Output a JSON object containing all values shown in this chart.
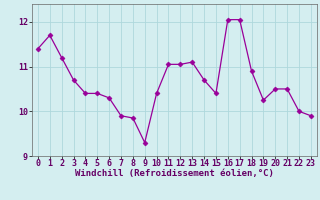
{
  "x": [
    0,
    1,
    2,
    3,
    4,
    5,
    6,
    7,
    8,
    9,
    10,
    11,
    12,
    13,
    14,
    15,
    16,
    17,
    18,
    19,
    20,
    21,
    22,
    23
  ],
  "y": [
    11.4,
    11.7,
    11.2,
    10.7,
    10.4,
    10.4,
    10.3,
    9.9,
    9.85,
    9.3,
    10.4,
    11.05,
    11.05,
    11.1,
    10.7,
    10.4,
    12.05,
    12.05,
    10.9,
    10.25,
    10.5,
    10.5,
    10.0,
    9.9
  ],
  "line_color": "#990099",
  "marker": "D",
  "markersize": 2.5,
  "linewidth": 0.9,
  "bg_color": "#d4eef0",
  "grid_color": "#aed8dc",
  "xlabel": "Windchill (Refroidissement éolien,°C)",
  "ylabel": "",
  "xlim": [
    -0.5,
    23.5
  ],
  "ylim": [
    9.0,
    12.4
  ],
  "yticks": [
    9,
    10,
    11,
    12
  ],
  "xticks": [
    0,
    1,
    2,
    3,
    4,
    5,
    6,
    7,
    8,
    9,
    10,
    11,
    12,
    13,
    14,
    15,
    16,
    17,
    18,
    19,
    20,
    21,
    22,
    23
  ],
  "label_fontsize": 6.5,
  "tick_fontsize": 6.0
}
